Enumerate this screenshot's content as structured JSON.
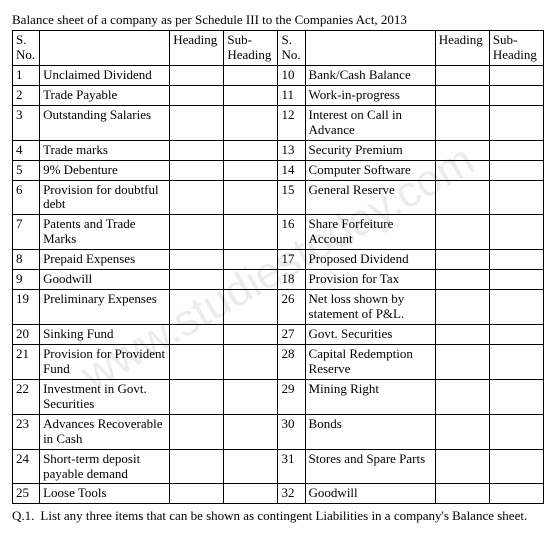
{
  "title": "Balance sheet of a company as per Schedule III to the Companies Act, 2013",
  "headers": {
    "sno": "S. No.",
    "item_blank": "",
    "heading": "Heading",
    "subheading": "Sub-Heading"
  },
  "left_rows": [
    {
      "no": "1",
      "item": "Unclaimed Dividend"
    },
    {
      "no": "2",
      "item": "Trade Payable"
    },
    {
      "no": "3",
      "item": "Outstanding Salaries"
    },
    {
      "no": "4",
      "item": "Trade marks"
    },
    {
      "no": "5",
      "item": "9% Debenture"
    },
    {
      "no": "6",
      "item": "Provision for doubtful debt"
    },
    {
      "no": "7",
      "item": "Patents and Trade Marks"
    },
    {
      "no": "8",
      "item": "Prepaid Expenses"
    },
    {
      "no": "9",
      "item": "Goodwill"
    },
    {
      "no": "19",
      "item": "Preliminary Expenses"
    },
    {
      "no": "20",
      "item": "Sinking Fund"
    },
    {
      "no": "21",
      "item": "Provision for Provident Fund"
    },
    {
      "no": "22",
      "item": "Investment in Govt. Securities"
    },
    {
      "no": "23",
      "item": "Advances Recoverable in Cash"
    },
    {
      "no": "24",
      "item": "Short-term deposit payable demand"
    },
    {
      "no": "25",
      "item": "Loose Tools"
    }
  ],
  "right_rows": [
    {
      "no": "10",
      "item": "Bank/Cash Balance"
    },
    {
      "no": "11",
      "item": "Work-in-progress"
    },
    {
      "no": "12",
      "item": "Interest on Call in Advance"
    },
    {
      "no": "13",
      "item": "Security Premium"
    },
    {
      "no": "14",
      "item": "Computer Software"
    },
    {
      "no": "15",
      "item": "General Reserve"
    },
    {
      "no": "16",
      "item": "Share Forfeiture Account"
    },
    {
      "no": "17",
      "item": "Proposed Dividend"
    },
    {
      "no": "18",
      "item": "Provision for Tax"
    },
    {
      "no": "26",
      "item": "Net loss shown by statement of P&L."
    },
    {
      "no": "27",
      "item": "Govt. Securities"
    },
    {
      "no": "28",
      "item": "Capital Redemption Reserve"
    },
    {
      "no": "29",
      "item": "Mining Right"
    },
    {
      "no": "30",
      "item": "Bonds"
    },
    {
      "no": "31",
      "item": "Stores and Spare Parts"
    },
    {
      "no": "32",
      "item": "Goodwill"
    }
  ],
  "question": {
    "label": "Q.1.",
    "text": "List any three items that can be shown as contingent Liabilities in a company's Balance sheet."
  },
  "watermark": "www.studiestoday.com"
}
